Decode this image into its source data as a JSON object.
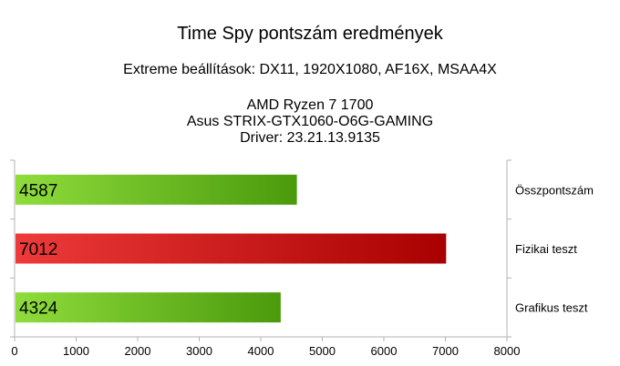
{
  "chart_data": {
    "type": "bar",
    "orientation": "horizontal",
    "title": "Time Spy pontszám eredmények",
    "subtitle_lines": [
      "Extreme beállítások: DX11, 1920X1080, AF16X, MSAA4X",
      "AMD Ryzen 7 1700",
      "Asus STRIX-GTX1060-O6G-GAMING",
      "Driver: 23.21.13.9135"
    ],
    "categories": [
      "Összpontszám",
      "Fizikai teszt",
      "Grafikus teszt"
    ],
    "values": [
      4587,
      7012,
      4324
    ],
    "bar_colors": [
      [
        "#8fdc3c",
        "#4a9a0c"
      ],
      [
        "#ee3a3a",
        "#a80000"
      ],
      [
        "#8fdc3c",
        "#4a9a0c"
      ]
    ],
    "xlim": [
      0,
      8000
    ],
    "x_ticks": [
      0,
      1000,
      2000,
      3000,
      4000,
      5000,
      6000,
      7000,
      8000
    ],
    "grid": "vertical-at-right-edge",
    "category_label_side": "right"
  }
}
